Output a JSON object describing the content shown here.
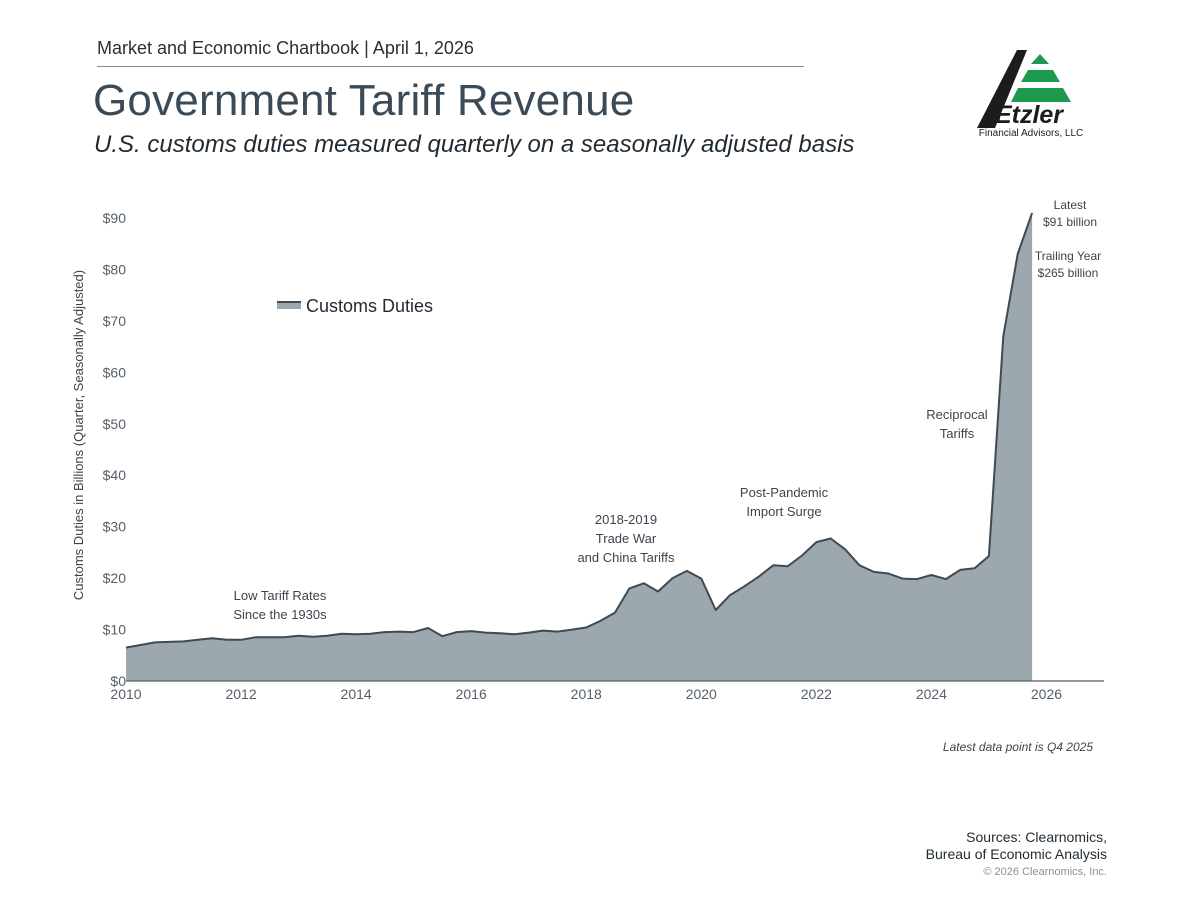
{
  "header": {
    "text": "Market and Economic Chartbook | April 1, 2026",
    "title": "Government Tariff Revenue",
    "subtitle": "U.S. customs duties measured quarterly on a seasonally adjusted basis"
  },
  "logo": {
    "name": "Etzler",
    "tagline": "Financial Advisors, LLC"
  },
  "colors": {
    "area_fill": "#9ca7ae",
    "area_line": "#3e4a54",
    "axis": "#55606a",
    "logo_green": "#1e9a4f",
    "logo_dark": "#1c1c1c"
  },
  "chart_data": {
    "type": "area",
    "title": "Government Tariff Revenue",
    "ylabel": "Customs Duties in Billions (Quarter, Seasonally Adjusted)",
    "xlabel": "",
    "xlim": [
      2010,
      2027
    ],
    "ylim": [
      0,
      90
    ],
    "grid": false,
    "x_ticks": [
      "2010",
      "2012",
      "2014",
      "2016",
      "2018",
      "2020",
      "2022",
      "2024",
      "2026"
    ],
    "x_tick_values": [
      2010,
      2012,
      2014,
      2016,
      2018,
      2020,
      2022,
      2024,
      2026
    ],
    "y_ticks": [
      "$0",
      "$10",
      "$20",
      "$30",
      "$40",
      "$50",
      "$60",
      "$70",
      "$80",
      "$90"
    ],
    "y_tick_values": [
      0,
      10,
      20,
      30,
      40,
      50,
      60,
      70,
      80,
      90
    ],
    "legend": {
      "position": "top-left",
      "label": "Customs Duties"
    },
    "series": [
      {
        "name": "Customs Duties",
        "x": [
          2010.0,
          2010.25,
          2010.5,
          2010.75,
          2011.0,
          2011.25,
          2011.5,
          2011.75,
          2012.0,
          2012.25,
          2012.5,
          2012.75,
          2013.0,
          2013.25,
          2013.5,
          2013.75,
          2014.0,
          2014.25,
          2014.5,
          2014.75,
          2015.0,
          2015.25,
          2015.5,
          2015.75,
          2016.0,
          2016.25,
          2016.5,
          2016.75,
          2017.0,
          2017.25,
          2017.5,
          2017.75,
          2018.0,
          2018.25,
          2018.5,
          2018.75,
          2019.0,
          2019.25,
          2019.5,
          2019.75,
          2020.0,
          2020.25,
          2020.5,
          2020.75,
          2021.0,
          2021.25,
          2021.5,
          2021.75,
          2022.0,
          2022.25,
          2022.5,
          2022.75,
          2023.0,
          2023.25,
          2023.5,
          2023.75,
          2024.0,
          2024.25,
          2024.5,
          2024.75,
          2025.0,
          2025.25,
          2025.5,
          2025.75
        ],
        "values": [
          6.5,
          7.0,
          7.5,
          7.6,
          7.7,
          8.0,
          8.3,
          8.0,
          8.0,
          8.5,
          8.5,
          8.5,
          8.8,
          8.6,
          8.8,
          9.2,
          9.1,
          9.2,
          9.5,
          9.6,
          9.5,
          10.3,
          8.7,
          9.5,
          9.7,
          9.4,
          9.3,
          9.1,
          9.4,
          9.8,
          9.6,
          10.0,
          10.4,
          11.7,
          13.3,
          18.0,
          19.0,
          17.4,
          20.0,
          21.4,
          19.9,
          13.8,
          16.7,
          18.4,
          20.3,
          22.5,
          22.3,
          24.4,
          27.0,
          27.7,
          25.6,
          22.5,
          21.2,
          20.9,
          19.9,
          19.8,
          20.6,
          19.8,
          21.6,
          21.9,
          24.3,
          67.0,
          83.0,
          91.0
        ]
      }
    ],
    "annotations": [
      {
        "id": "low",
        "lines": [
          "Low Tariff Rates",
          "Since the 1930s"
        ]
      },
      {
        "id": "tradewar",
        "lines": [
          "2018-2019",
          "Trade War",
          "and China Tariffs"
        ]
      },
      {
        "id": "pandemic",
        "lines": [
          "Post-Pandemic",
          "Import Surge"
        ]
      },
      {
        "id": "reciprocal",
        "lines": [
          "Reciprocal",
          "Tariffs"
        ]
      },
      {
        "id": "latest",
        "lines": [
          "Latest",
          "$91 billion"
        ]
      },
      {
        "id": "trailing",
        "lines": [
          "Trailing Year",
          "$265 billion"
        ]
      }
    ],
    "note": "Latest data point is Q4 2025"
  },
  "footer": {
    "sources_line1": "Sources: Clearnomics,",
    "sources_line2": "Bureau of Economic Analysis",
    "copyright": "© 2026 Clearnomics, Inc."
  }
}
